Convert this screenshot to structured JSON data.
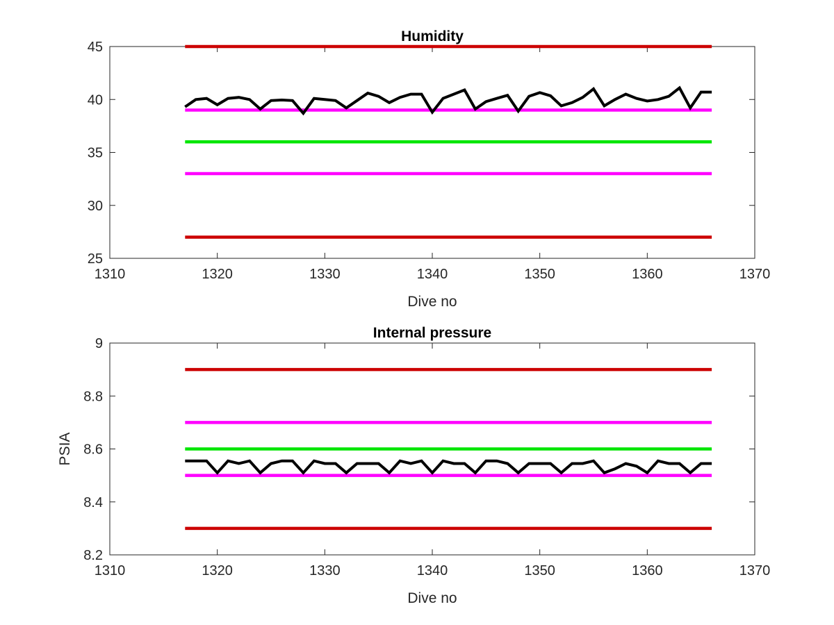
{
  "chart_data": [
    {
      "type": "line",
      "title": "Humidity",
      "xlabel": "Dive no",
      "ylabel": "",
      "xlim": [
        1310,
        1370
      ],
      "ylim": [
        25,
        45
      ],
      "xticks": [
        1310,
        1320,
        1330,
        1340,
        1350,
        1360,
        1370
      ],
      "yticks": [
        25,
        30,
        35,
        40,
        45
      ],
      "grid": false,
      "series": [
        {
          "color": "#cc0000",
          "x": [
            1317,
            1366
          ],
          "y": [
            45,
            45
          ]
        },
        {
          "color": "#ff00ff",
          "x": [
            1317,
            1366
          ],
          "y": [
            39,
            39
          ]
        },
        {
          "color": "#00e600",
          "x": [
            1317,
            1366
          ],
          "y": [
            36,
            36
          ]
        },
        {
          "color": "#ff00ff",
          "x": [
            1317,
            1366
          ],
          "y": [
            33,
            33
          ]
        },
        {
          "color": "#cc0000",
          "x": [
            1317,
            1366
          ],
          "y": [
            27,
            27
          ]
        },
        {
          "color": "#000000",
          "x": [
            1317,
            1318,
            1319,
            1320,
            1321,
            1322,
            1323,
            1324,
            1325,
            1326,
            1327,
            1328,
            1329,
            1330,
            1331,
            1332,
            1333,
            1334,
            1335,
            1336,
            1337,
            1338,
            1339,
            1340,
            1341,
            1342,
            1343,
            1344,
            1345,
            1346,
            1347,
            1348,
            1349,
            1350,
            1351,
            1352,
            1353,
            1354,
            1355,
            1356,
            1357,
            1358,
            1359,
            1360,
            1361,
            1362,
            1363,
            1364,
            1365,
            1366
          ],
          "y": [
            39.3,
            40.0,
            40.1,
            39.5,
            40.1,
            40.2,
            40.0,
            39.1,
            39.9,
            39.95,
            39.9,
            38.7,
            40.1,
            40.0,
            39.9,
            39.2,
            39.9,
            40.6,
            40.3,
            39.7,
            40.2,
            40.5,
            40.5,
            38.8,
            40.1,
            40.5,
            40.9,
            39.1,
            39.8,
            40.1,
            40.4,
            38.9,
            40.3,
            40.65,
            40.35,
            39.4,
            39.7,
            40.2,
            41.0,
            39.4,
            40.0,
            40.5,
            40.1,
            39.85,
            40.0,
            40.3,
            41.1,
            39.2,
            40.7,
            40.7
          ]
        }
      ]
    },
    {
      "type": "line",
      "title": "Internal pressure",
      "xlabel": "Dive no",
      "ylabel": "PSIA",
      "xlim": [
        1310,
        1370
      ],
      "ylim": [
        8.2,
        9
      ],
      "xticks": [
        1310,
        1320,
        1330,
        1340,
        1350,
        1360,
        1370
      ],
      "yticks": [
        8.2,
        8.4,
        8.6,
        8.8,
        9
      ],
      "grid": false,
      "series": [
        {
          "color": "#cc0000",
          "x": [
            1317,
            1366
          ],
          "y": [
            8.9,
            8.9
          ]
        },
        {
          "color": "#ff00ff",
          "x": [
            1317,
            1366
          ],
          "y": [
            8.7,
            8.7
          ]
        },
        {
          "color": "#00e600",
          "x": [
            1317,
            1366
          ],
          "y": [
            8.6,
            8.6
          ]
        },
        {
          "color": "#ff00ff",
          "x": [
            1317,
            1366
          ],
          "y": [
            8.5,
            8.5
          ]
        },
        {
          "color": "#cc0000",
          "x": [
            1317,
            1366
          ],
          "y": [
            8.3,
            8.3
          ]
        },
        {
          "color": "#000000",
          "x": [
            1317,
            1318,
            1319,
            1320,
            1321,
            1322,
            1323,
            1324,
            1325,
            1326,
            1327,
            1328,
            1329,
            1330,
            1331,
            1332,
            1333,
            1334,
            1335,
            1336,
            1337,
            1338,
            1339,
            1340,
            1341,
            1342,
            1343,
            1344,
            1345,
            1346,
            1347,
            1348,
            1349,
            1350,
            1351,
            1352,
            1353,
            1354,
            1355,
            1356,
            1357,
            1358,
            1359,
            1360,
            1361,
            1362,
            1363,
            1364,
            1365,
            1366
          ],
          "y": [
            8.555,
            8.555,
            8.555,
            8.51,
            8.555,
            8.545,
            8.555,
            8.51,
            8.545,
            8.555,
            8.555,
            8.51,
            8.555,
            8.545,
            8.545,
            8.51,
            8.545,
            8.545,
            8.545,
            8.51,
            8.555,
            8.545,
            8.555,
            8.51,
            8.555,
            8.545,
            8.545,
            8.51,
            8.555,
            8.555,
            8.545,
            8.51,
            8.545,
            8.545,
            8.545,
            8.51,
            8.545,
            8.545,
            8.555,
            8.51,
            8.525,
            8.545,
            8.535,
            8.51,
            8.555,
            8.545,
            8.545,
            8.51,
            8.545,
            8.545
          ]
        }
      ]
    }
  ]
}
